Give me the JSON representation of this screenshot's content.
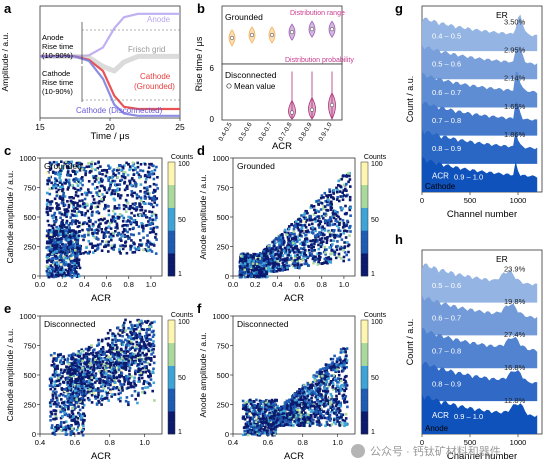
{
  "figure": {
    "panels": [
      "a",
      "b",
      "c",
      "d",
      "e",
      "f",
      "g",
      "h"
    ],
    "watermark": "公众号 · 钙钛矿材料和器件",
    "colors": {
      "anode": "#b9a6f0",
      "frisch": "#bdbdbd",
      "cathode_grounded": "#e84040",
      "cathode_disconnected": "#7f7fe0",
      "violin_orange": "#f4b35a",
      "violin_purple": "#a05fb8",
      "violin_magenta": "#b0307a",
      "annotation_pink": "#c93b8f",
      "colormap": [
        "#0b1a6e",
        "#1e5bb4",
        "#3ea3d6",
        "#a9d99c",
        "#fdf5b0"
      ]
    }
  },
  "chart_data": [
    {
      "panel": "a",
      "type": "line",
      "xlabel": "Time / μs",
      "ylabel": "Amplitude / a.u.",
      "xlim": [
        15,
        25
      ],
      "xticks": [
        15,
        20,
        25
      ],
      "series": [
        {
          "name": "Anode",
          "x": [
            15,
            17.5,
            18.5,
            19.5,
            20.3,
            21,
            22,
            25
          ],
          "y": [
            0.55,
            0.55,
            0.56,
            0.63,
            0.8,
            0.9,
            0.93,
            0.93
          ]
        },
        {
          "name": "Frisch grid",
          "x": [
            15,
            17.5,
            18.5,
            19.5,
            20.3,
            21,
            22,
            25
          ],
          "y": [
            0.55,
            0.55,
            0.54,
            0.46,
            0.42,
            0.5,
            0.55,
            0.55
          ]
        },
        {
          "name": "Cathode (Grounded)",
          "x": [
            15,
            17.5,
            18.5,
            19.5,
            20.3,
            21,
            22,
            25
          ],
          "y": [
            0.55,
            0.55,
            0.52,
            0.42,
            0.2,
            0.1,
            0.08,
            0.08
          ]
        },
        {
          "name": "Cathode (Disconnected)",
          "x": [
            15,
            17.5,
            18.5,
            19.5,
            20.3,
            21,
            22,
            25
          ],
          "y": [
            0.55,
            0.55,
            0.51,
            0.35,
            0.12,
            0.04,
            0.02,
            0.02
          ]
        }
      ],
      "annotations": [
        "Anode\nRise time\n(10-90%)",
        "Cathode\nRise time\n(10-90%)"
      ]
    },
    {
      "panel": "b",
      "type": "violin",
      "xlabel": "ACR",
      "ylabel": "Rise time / μs",
      "categories": [
        "0.4-0.5",
        "0.5-0.6",
        "0.6-0.7",
        "0.7-0.8",
        "0.8-0.9",
        "0.9-1.0"
      ],
      "grounded": {
        "label": "Grounded",
        "mean": [
          0.9,
          1.0,
          1.0,
          1.1,
          1.2,
          1.2
        ],
        "ylim": [
          0,
          2
        ]
      },
      "disconnected": {
        "label": "Disconnected",
        "legend": "Mean value",
        "mean": [
          null,
          null,
          null,
          0.8,
          1.1,
          1.6
        ],
        "ylim": [
          0,
          6
        ],
        "yticks": [
          0,
          6
        ]
      },
      "annotations": [
        "Distribution range",
        "Distribution probability"
      ]
    },
    {
      "panel": "c",
      "type": "heatmap",
      "label": "Grounded",
      "xlabel": "ACR",
      "ylabel": "Cathode amplitude / a.u.",
      "xlim": [
        0,
        1.1
      ],
      "ylim": [
        0,
        1000
      ],
      "xticks": [
        0.0,
        0.2,
        0.4,
        0.6,
        0.8,
        1.0
      ],
      "yticks": [
        0,
        250,
        500,
        750,
        1000
      ],
      "colorbar": {
        "label": "Counts",
        "ticks": [
          1,
          50,
          100
        ]
      }
    },
    {
      "panel": "d",
      "type": "heatmap",
      "label": "Grounded",
      "xlabel": "ACR",
      "ylabel": "Anode amplitude / a.u.",
      "xlim": [
        0,
        1.1
      ],
      "ylim": [
        0,
        1000
      ],
      "xticks": [
        0.0,
        0.2,
        0.4,
        0.6,
        0.8,
        1.0
      ],
      "yticks": [
        0,
        250,
        500,
        750,
        1000
      ],
      "colorbar": {
        "label": "Counts",
        "ticks": [
          1,
          50,
          100
        ]
      }
    },
    {
      "panel": "e",
      "type": "heatmap",
      "label": "Disconnected",
      "xlabel": "ACR",
      "ylabel": "Cathode amplitude / a.u.",
      "xlim": [
        0.4,
        1.1
      ],
      "ylim": [
        0,
        1000
      ],
      "xticks": [
        0.4,
        0.6,
        0.8,
        1.0
      ],
      "yticks": [
        0,
        250,
        500,
        750,
        1000
      ],
      "colorbar": {
        "label": "Counts",
        "ticks": [
          1,
          50,
          100
        ]
      }
    },
    {
      "panel": "f",
      "type": "heatmap",
      "label": "Disconnected",
      "xlabel": "ACR",
      "ylabel": "Anode amplitude / a.u.",
      "xlim": [
        0.4,
        1.1
      ],
      "ylim": [
        0,
        1000
      ],
      "xticks": [
        0.4,
        0.6,
        0.8,
        1.0
      ],
      "yticks": [
        0,
        250,
        500,
        750,
        1000
      ],
      "colorbar": {
        "label": "Counts",
        "ticks": [
          1,
          50,
          100
        ]
      }
    },
    {
      "panel": "g",
      "type": "area",
      "label": "Cathode",
      "xlabel": "Channel number",
      "ylabel": "Count / a.u.",
      "xticks": [
        0,
        500,
        1000
      ],
      "xlim": [
        0,
        1250
      ],
      "legend": "ER",
      "series": [
        {
          "name": "0.4 – 0.5",
          "er": "3.50%"
        },
        {
          "name": "0.5 – 0.6",
          "er": "2.95%"
        },
        {
          "name": "0.6 – 0.7",
          "er": "2.14%"
        },
        {
          "name": "0.7 – 0.8",
          "er": "1.65%"
        },
        {
          "name": "0.8 – 0.9",
          "er": "1.86%"
        },
        {
          "name": "0.9 – 1.0",
          "er": ""
        }
      ],
      "acr_label": "ACR"
    },
    {
      "panel": "h",
      "type": "area",
      "label": "Anode",
      "xlabel": "Channel number",
      "ylabel": "Count / a.u.",
      "xticks": [
        0,
        500,
        1000
      ],
      "xlim": [
        0,
        1250
      ],
      "legend": "ER",
      "series": [
        {
          "name": "0.5 – 0.6",
          "er": "23.9%"
        },
        {
          "name": "0.6 – 0.7",
          "er": "19.8%"
        },
        {
          "name": "0.7 – 0.8",
          "er": "27.4%"
        },
        {
          "name": "0.8 – 0.9",
          "er": "16.8%"
        },
        {
          "name": "0.9 – 1.0",
          "er": "12.8%"
        }
      ],
      "acr_label": "ACR"
    }
  ]
}
